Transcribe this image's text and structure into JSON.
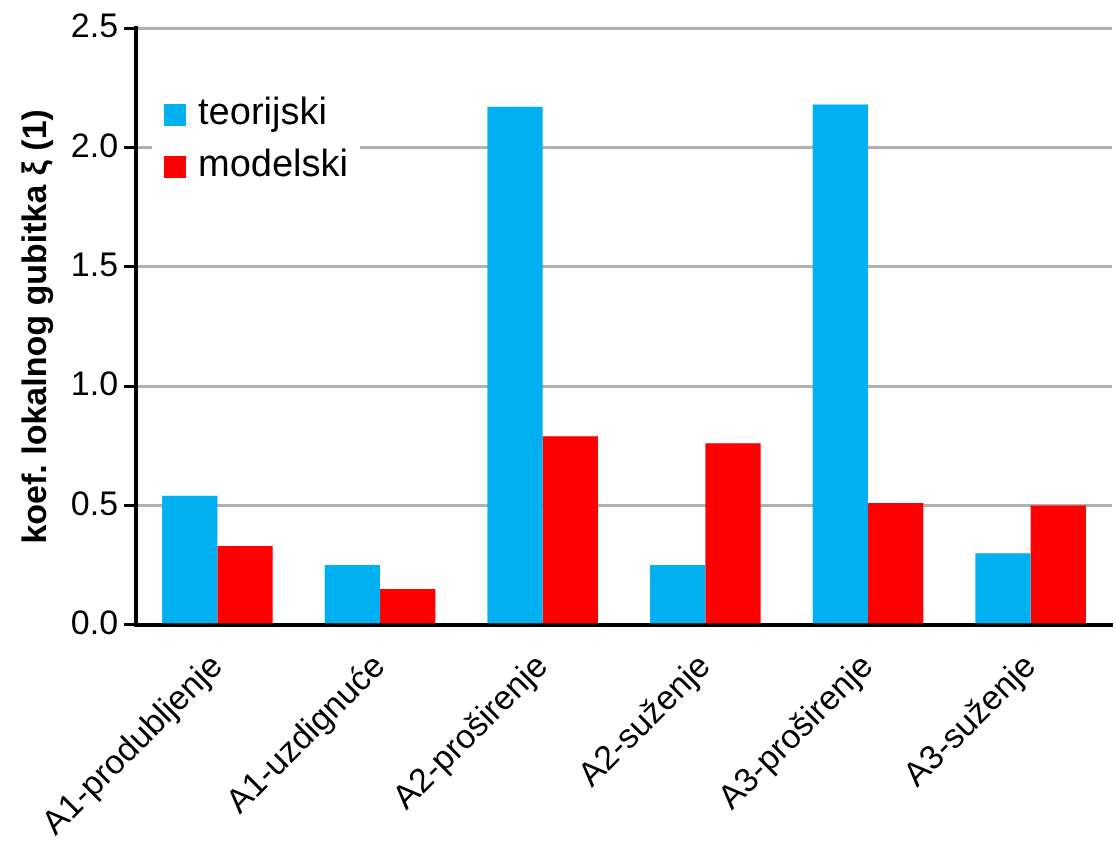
{
  "chart_data": {
    "type": "bar",
    "ylabel": "koef. lokalnog gubitka ξ (1)",
    "categories": [
      "A1-produbljenje",
      "A1-uzdignuće",
      "A2-proširenje",
      "A2-suženje",
      "A3-proširenje",
      "A3-suženje"
    ],
    "series": [
      {
        "name": "teorijski",
        "color": "#00b0f0",
        "values": [
          0.54,
          0.25,
          2.17,
          0.25,
          2.18,
          0.3
        ]
      },
      {
        "name": "modelski",
        "color": "#ff0000",
        "values": [
          0.33,
          0.15,
          0.79,
          0.76,
          0.51,
          0.5
        ]
      }
    ],
    "ylim": [
      0,
      2.5
    ],
    "yticks": [
      {
        "value": 0,
        "label": "0.0"
      },
      {
        "value": 0.5,
        "label": "0.5"
      },
      {
        "value": 1,
        "label": "1.0"
      },
      {
        "value": 1.5,
        "label": "1.5"
      },
      {
        "value": 2,
        "label": "2.0"
      },
      {
        "value": 2.5,
        "label": "2.5"
      }
    ],
    "grid": "y",
    "legend": "top left"
  }
}
